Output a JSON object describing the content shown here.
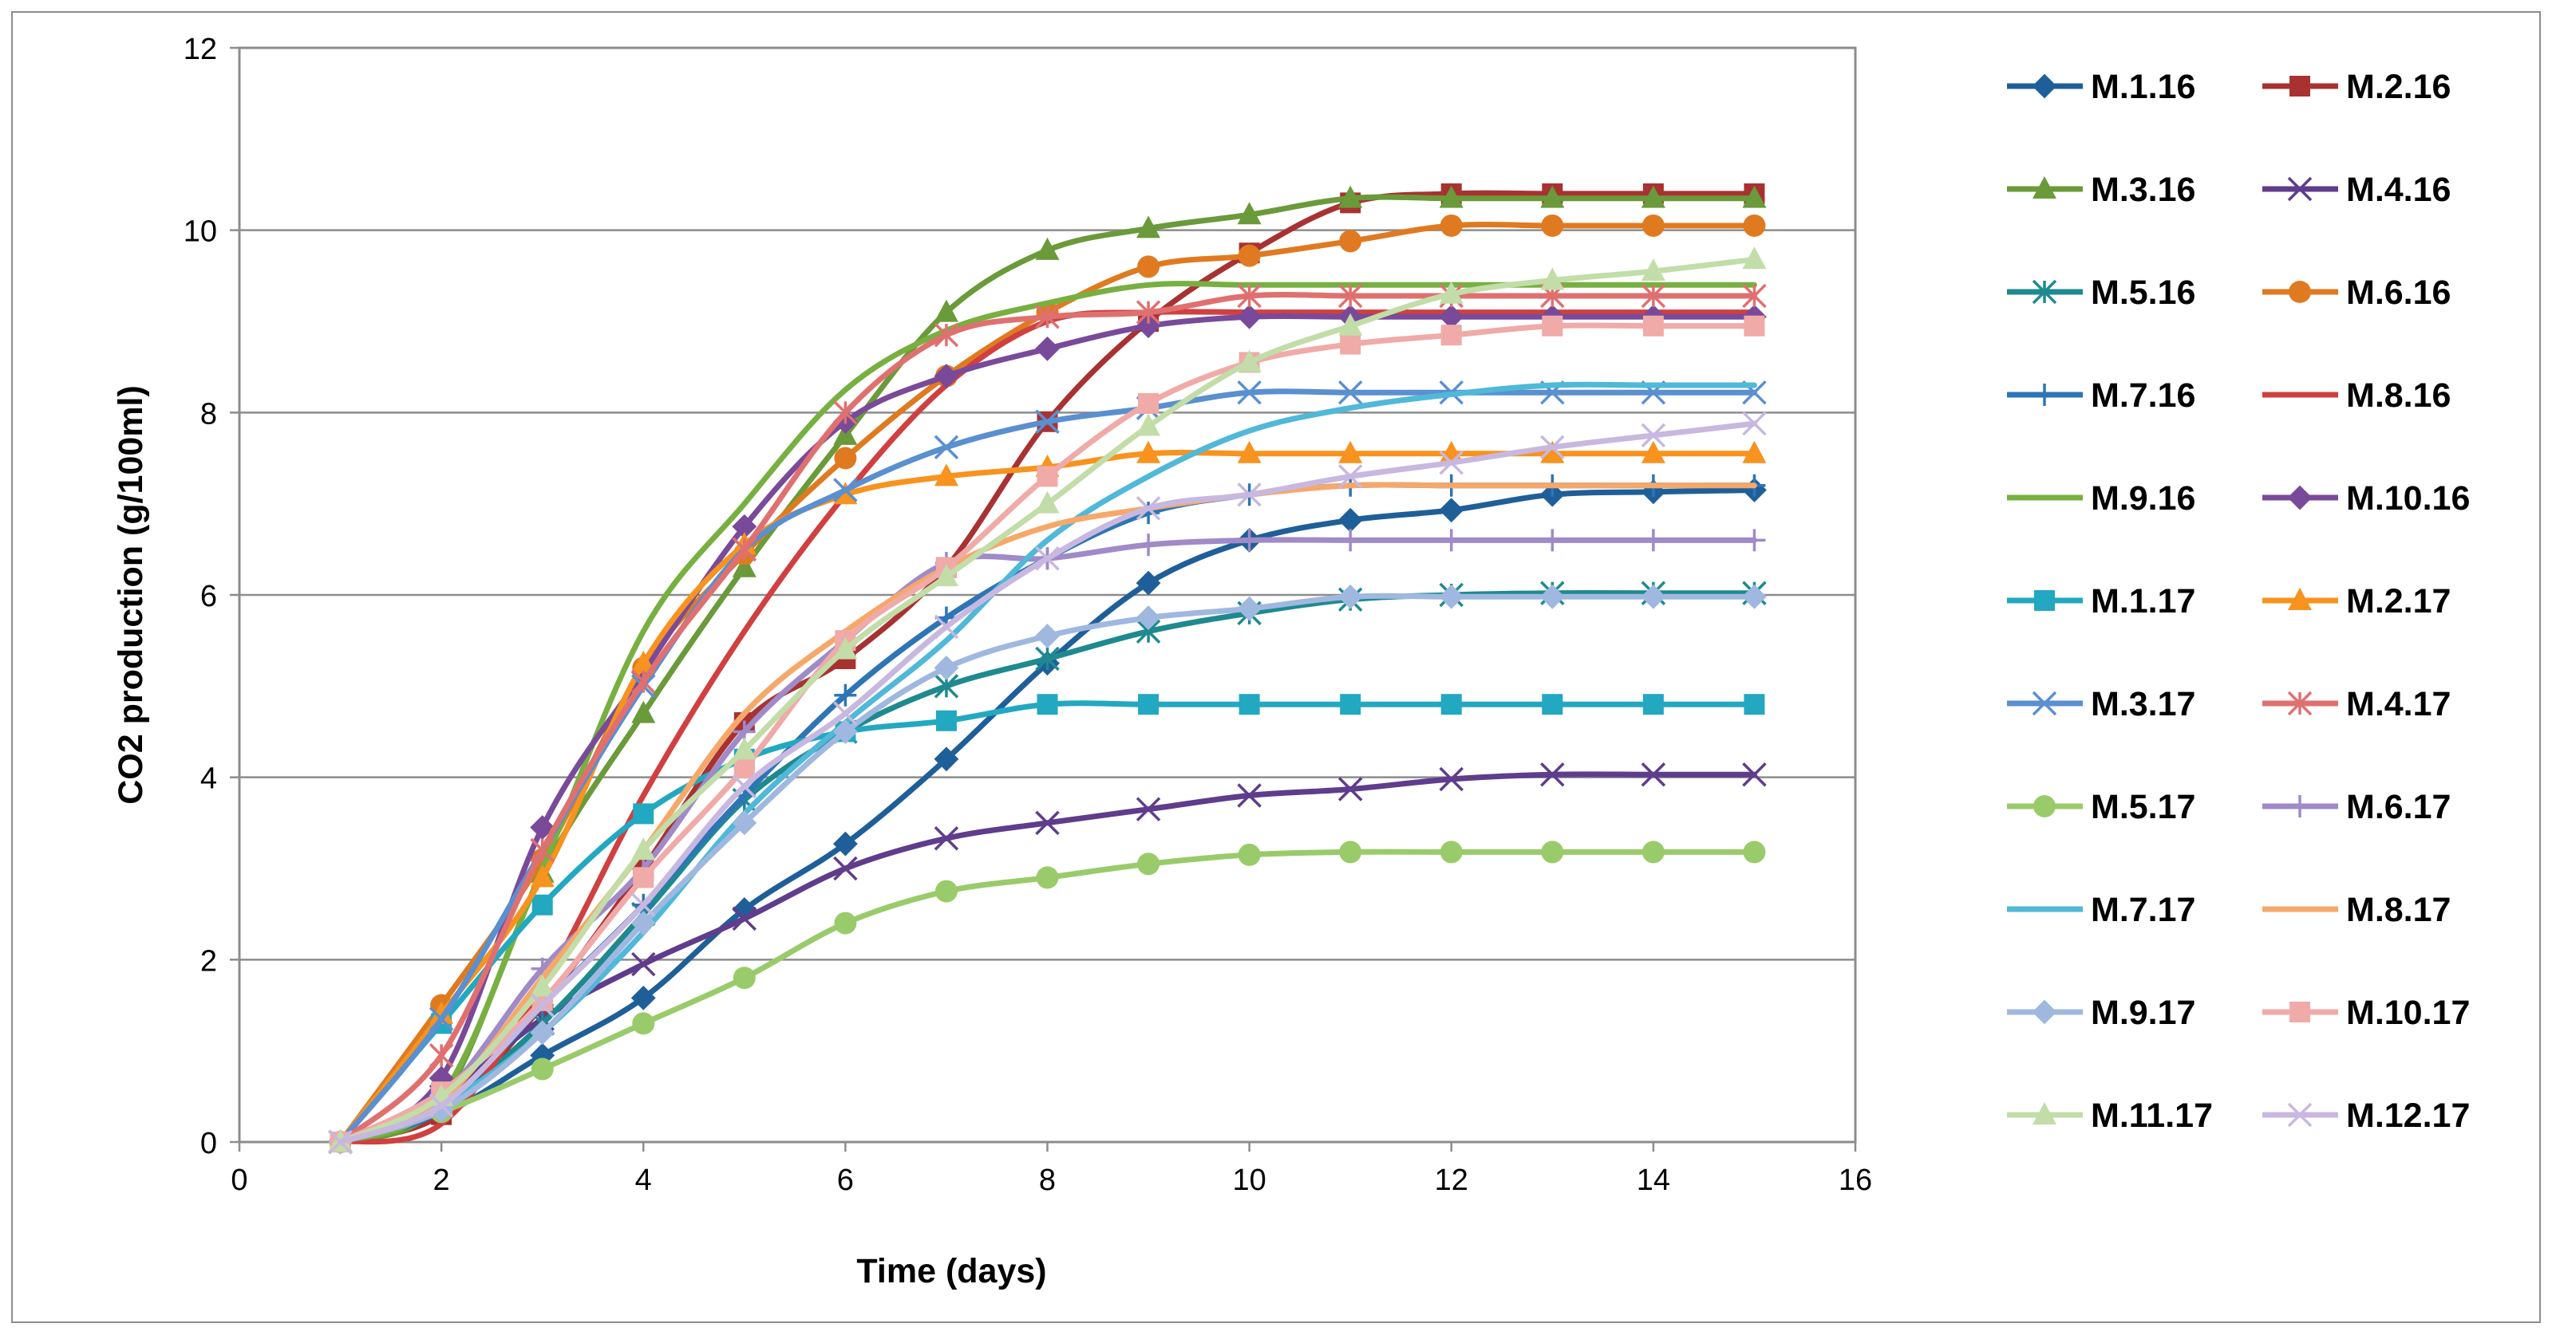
{
  "chart_data": {
    "type": "line",
    "title": "",
    "xlabel": "Time (days)",
    "ylabel": "CO2 production (g/100ml)",
    "xlim": [
      0,
      16
    ],
    "ylim": [
      0,
      12
    ],
    "x_ticks": [
      0,
      2,
      4,
      6,
      8,
      10,
      12,
      14,
      16
    ],
    "y_ticks": [
      0,
      2,
      4,
      6,
      8,
      10,
      12
    ],
    "grid": "horizontal",
    "legend_position": "right",
    "x": [
      1,
      2,
      3,
      4,
      5,
      6,
      7,
      8,
      9,
      10,
      11,
      12,
      13,
      14,
      15
    ],
    "series": [
      {
        "name": "M.1.16",
        "color": "#1f5f99",
        "marker": "diamond",
        "values": [
          0,
          0.3,
          0.95,
          1.58,
          2.55,
          3.27,
          4.2,
          5.25,
          6.13,
          6.6,
          6.82,
          6.93,
          7.1,
          7.13,
          7.15
        ]
      },
      {
        "name": "M.2.16",
        "color": "#a83232",
        "marker": "square",
        "values": [
          0,
          0.3,
          1.5,
          3.0,
          4.6,
          5.3,
          6.3,
          7.9,
          9.0,
          9.75,
          10.3,
          10.4,
          10.4,
          10.4,
          10.4
        ]
      },
      {
        "name": "M.3.16",
        "color": "#6a9a3a",
        "marker": "triangle",
        "values": [
          0,
          0.45,
          2.95,
          4.7,
          6.3,
          7.75,
          9.1,
          9.78,
          10.02,
          10.17,
          10.35,
          10.35,
          10.35,
          10.35,
          10.35
        ]
      },
      {
        "name": "M.4.16",
        "color": "#5f3c8c",
        "marker": "x",
        "values": [
          0,
          0.5,
          1.35,
          1.95,
          2.45,
          3.0,
          3.33,
          3.5,
          3.65,
          3.8,
          3.87,
          3.98,
          4.03,
          4.03,
          4.03
        ]
      },
      {
        "name": "M.5.16",
        "color": "#1e8a90",
        "marker": "star",
        "values": [
          0,
          0.4,
          1.3,
          2.5,
          3.75,
          4.5,
          5.0,
          5.3,
          5.6,
          5.8,
          5.95,
          6.0,
          6.02,
          6.02,
          6.02
        ]
      },
      {
        "name": "M.6.16",
        "color": "#e07a20",
        "marker": "circle",
        "values": [
          0,
          1.5,
          3.1,
          5.2,
          6.45,
          7.5,
          8.4,
          9.1,
          9.6,
          9.72,
          9.88,
          10.05,
          10.05,
          10.05,
          10.05
        ]
      },
      {
        "name": "M.7.16",
        "color": "#2e75b6",
        "marker": "plus",
        "values": [
          0,
          0.35,
          1.5,
          2.6,
          3.8,
          4.9,
          5.75,
          6.4,
          6.9,
          7.1,
          7.2,
          7.2,
          7.2,
          7.2,
          7.2
        ]
      },
      {
        "name": "M.8.16",
        "color": "#d04040",
        "marker": "none",
        "values": [
          0,
          0.2,
          1.7,
          3.8,
          5.6,
          7.1,
          8.3,
          9.0,
          9.1,
          9.1,
          9.1,
          9.1,
          9.1,
          9.1,
          9.1
        ]
      },
      {
        "name": "M.9.16",
        "color": "#77b040",
        "marker": "none",
        "values": [
          0,
          0.5,
          3.0,
          5.6,
          7.0,
          8.25,
          8.9,
          9.2,
          9.4,
          9.4,
          9.4,
          9.4,
          9.4,
          9.4,
          9.4
        ]
      },
      {
        "name": "M.10.16",
        "color": "#7a4a9a",
        "marker": "diamond",
        "values": [
          0,
          0.7,
          3.45,
          5.15,
          6.75,
          7.9,
          8.4,
          8.7,
          8.95,
          9.05,
          9.05,
          9.05,
          9.05,
          9.05,
          9.05
        ]
      },
      {
        "name": "M.1.17",
        "color": "#22a8c0",
        "marker": "square",
        "values": [
          0,
          1.3,
          2.6,
          3.6,
          4.2,
          4.5,
          4.62,
          4.8,
          4.8,
          4.8,
          4.8,
          4.8,
          4.8,
          4.8,
          4.8
        ]
      },
      {
        "name": "M.2.17",
        "color": "#f7931e",
        "marker": "triangle",
        "values": [
          0,
          1.4,
          2.9,
          5.25,
          6.55,
          7.1,
          7.3,
          7.4,
          7.55,
          7.55,
          7.55,
          7.55,
          7.55,
          7.55,
          7.55
        ]
      },
      {
        "name": "M.3.17",
        "color": "#5a8fd0",
        "marker": "x",
        "values": [
          0,
          1.35,
          3.2,
          5.0,
          6.5,
          7.15,
          7.62,
          7.9,
          8.05,
          8.22,
          8.22,
          8.22,
          8.22,
          8.22,
          8.22
        ]
      },
      {
        "name": "M.4.17",
        "color": "#e07070",
        "marker": "star",
        "values": [
          0,
          0.95,
          3.2,
          5.05,
          6.5,
          8.0,
          8.85,
          9.05,
          9.1,
          9.28,
          9.28,
          9.28,
          9.28,
          9.28,
          9.28
        ]
      },
      {
        "name": "M.5.17",
        "color": "#9acb6a",
        "marker": "circle",
        "values": [
          0,
          0.33,
          0.8,
          1.3,
          1.8,
          2.4,
          2.75,
          2.9,
          3.05,
          3.15,
          3.18,
          3.18,
          3.18,
          3.18,
          3.18
        ]
      },
      {
        "name": "M.6.17",
        "color": "#a08ac8",
        "marker": "plus",
        "values": [
          0,
          0.5,
          1.9,
          3.0,
          4.5,
          5.5,
          6.35,
          6.4,
          6.55,
          6.6,
          6.6,
          6.6,
          6.6,
          6.6,
          6.6
        ]
      },
      {
        "name": "M.7.17",
        "color": "#50b8d8",
        "marker": "none",
        "values": [
          0,
          0.4,
          1.2,
          2.3,
          3.6,
          4.6,
          5.5,
          6.6,
          7.3,
          7.8,
          8.05,
          8.2,
          8.3,
          8.3,
          8.3
        ]
      },
      {
        "name": "M.8.17",
        "color": "#f5a86a",
        "marker": "none",
        "values": [
          0,
          0.45,
          1.8,
          3.2,
          4.7,
          5.6,
          6.3,
          6.75,
          6.95,
          7.1,
          7.2,
          7.2,
          7.2,
          7.2,
          7.2
        ]
      },
      {
        "name": "M.9.17",
        "color": "#a0b8e0",
        "marker": "diamond",
        "values": [
          0,
          0.35,
          1.2,
          2.4,
          3.5,
          4.5,
          5.2,
          5.55,
          5.75,
          5.85,
          5.98,
          5.98,
          5.98,
          5.98,
          5.98
        ]
      },
      {
        "name": "M.10.17",
        "color": "#f0aaa8",
        "marker": "square",
        "values": [
          0,
          0.55,
          1.55,
          2.9,
          4.1,
          5.5,
          6.3,
          7.3,
          8.1,
          8.55,
          8.75,
          8.85,
          8.95,
          8.95,
          8.95
        ]
      },
      {
        "name": "M.11.17",
        "color": "#c2dda8",
        "marker": "triangle",
        "values": [
          0,
          0.5,
          1.7,
          3.2,
          4.3,
          5.4,
          6.2,
          7.0,
          7.85,
          8.55,
          8.95,
          9.3,
          9.45,
          9.55,
          9.68
        ]
      },
      {
        "name": "M.12.17",
        "color": "#c8b8e0",
        "marker": "x",
        "values": [
          0,
          0.4,
          1.5,
          2.6,
          3.9,
          4.7,
          5.65,
          6.4,
          6.95,
          7.1,
          7.3,
          7.45,
          7.62,
          7.75,
          7.88
        ]
      }
    ]
  }
}
